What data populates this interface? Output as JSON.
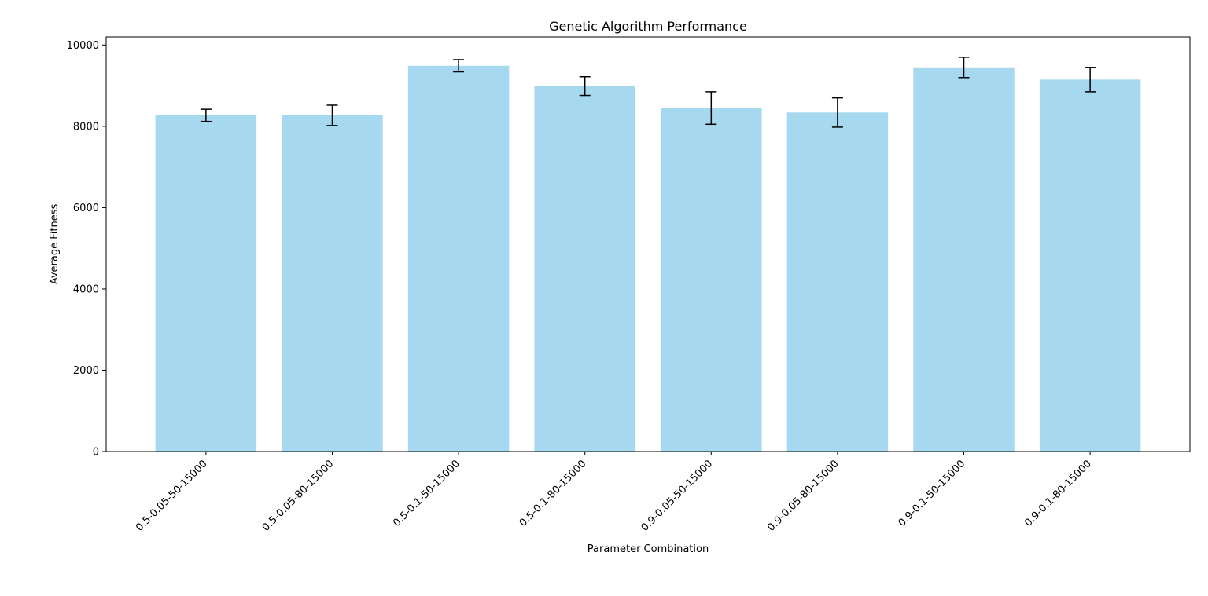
{
  "chart_data": {
    "type": "bar",
    "title": "Genetic Algorithm Performance",
    "xlabel": "Parameter Combination",
    "ylabel": "Average Fitness",
    "categories": [
      "0.5-0.05-50-15000",
      "0.5-0.05-80-15000",
      "0.5-0.1-50-15000",
      "0.5-0.1-80-15000",
      "0.9-0.05-50-15000",
      "0.9-0.05-80-15000",
      "0.9-0.1-50-15000",
      "0.9-0.1-80-15000"
    ],
    "values": [
      8270,
      8270,
      9490,
      8990,
      8450,
      8340,
      9450,
      9150
    ],
    "errors": [
      150,
      250,
      150,
      230,
      400,
      360,
      250,
      300
    ],
    "ylim": [
      0,
      10200
    ],
    "yticks": [
      0,
      2000,
      4000,
      6000,
      8000,
      10000
    ],
    "grid": false,
    "bar_color": "#a6d9ef",
    "error_color": "#000000",
    "axis_color": "#000000"
  }
}
